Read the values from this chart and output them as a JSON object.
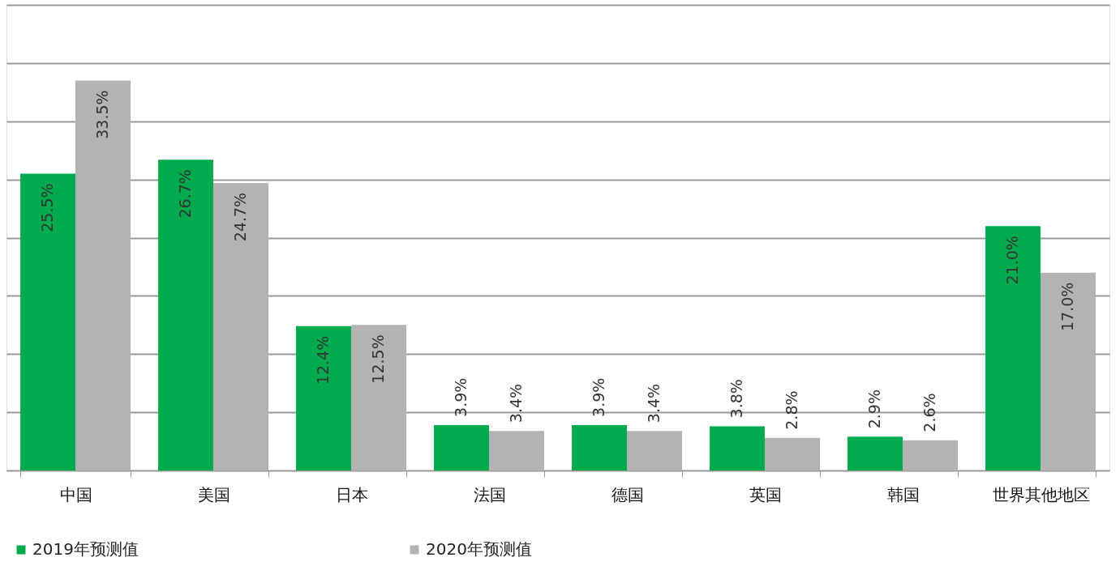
{
  "chart_data": {
    "type": "bar",
    "categories": [
      "中国",
      "美国",
      "日本",
      "法国",
      "德国",
      "英国",
      "韩国",
      "世界其他地区"
    ],
    "series": [
      {
        "name": "2019年预测值",
        "color": "#00ab4e",
        "values": [
          25.5,
          26.7,
          12.4,
          3.9,
          3.9,
          3.8,
          2.9,
          21.0
        ],
        "value_labels": [
          "25.5%",
          "26.7%",
          "12.4%",
          "3.9%",
          "3.9%",
          "3.8%",
          "2.9%",
          "21.0%"
        ]
      },
      {
        "name": "2020年预测值",
        "color": "#b3b3b5",
        "values": [
          33.5,
          24.7,
          12.5,
          3.4,
          3.4,
          2.8,
          2.6,
          17.0
        ],
        "value_labels": [
          "33.5%",
          "24.7%",
          "12.5%",
          "3.4%",
          "3.4%",
          "2.8%",
          "2.6%",
          "17.0%"
        ]
      }
    ],
    "ylim": [
      0,
      40
    ],
    "yticks": [
      {
        "value": 0,
        "label": null
      },
      {
        "value": 5,
        "label": null
      },
      {
        "value": 10,
        "label": null
      },
      {
        "value": 15,
        "label": null
      },
      {
        "value": 20,
        "label": null
      },
      {
        "value": 25,
        "label": null
      },
      {
        "value": 30,
        "label": null
      },
      {
        "value": 35,
        "label": null
      },
      {
        "value": 40,
        "label": null
      }
    ],
    "tick_labels": "x",
    "grid": "y",
    "legend": "bottom"
  }
}
